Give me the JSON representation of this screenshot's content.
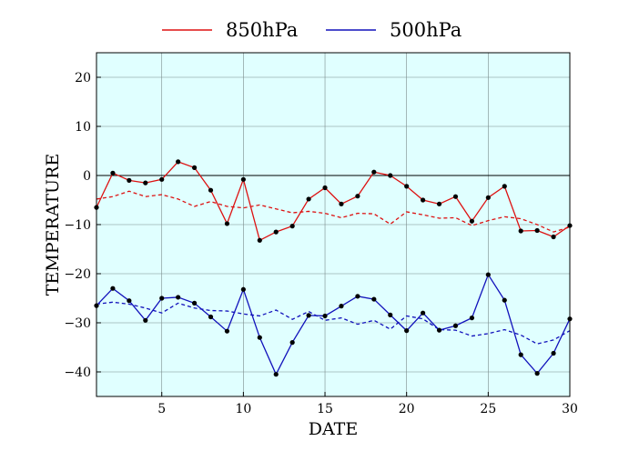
{
  "chart_data": {
    "type": "line",
    "title": "",
    "xlabel": "DATE",
    "ylabel": "TEMPERATURE",
    "xlim": [
      1,
      30
    ],
    "ylim": [
      -45,
      25
    ],
    "xticks": [
      5,
      10,
      15,
      20,
      25,
      30
    ],
    "yticks": [
      -40,
      -30,
      -20,
      -10,
      0,
      10,
      20
    ],
    "xtick_labels": [
      "5",
      "10",
      "15",
      "20",
      "25",
      "30"
    ],
    "ytick_labels": [
      "−40",
      "−30",
      "−20",
      "−10",
      "0",
      "10",
      "20"
    ],
    "grid": true,
    "background_color": "#e0ffff",
    "zero_line": true,
    "legend_position": "top-center",
    "x": [
      1,
      2,
      3,
      4,
      5,
      6,
      7,
      8,
      9,
      10,
      11,
      12,
      13,
      14,
      15,
      16,
      17,
      18,
      19,
      20,
      21,
      22,
      23,
      24,
      25,
      26,
      27,
      28,
      29,
      30
    ],
    "series": [
      {
        "name": "850hPa",
        "color": "#dd1111",
        "style": "solid",
        "markers": true,
        "values": [
          -6.5,
          0.5,
          -1.0,
          -1.5,
          -0.8,
          2.8,
          1.6,
          -3.0,
          -9.8,
          -0.8,
          -13.2,
          -11.5,
          -10.3,
          -4.8,
          -2.5,
          -5.8,
          -4.2,
          0.7,
          0.0,
          -2.2,
          -5.0,
          -5.8,
          -4.3,
          -9.3,
          -4.5,
          -2.2,
          -11.3,
          -11.2,
          -12.5,
          -10.2
        ]
      },
      {
        "name": "500hPa",
        "color": "#1111bb",
        "style": "solid",
        "markers": true,
        "values": [
          -26.5,
          -23.0,
          -25.5,
          -29.5,
          -25.0,
          -24.8,
          -26.0,
          -28.8,
          -31.7,
          -23.2,
          -33.0,
          -40.5,
          -34.0,
          -28.5,
          -28.6,
          -26.6,
          -24.6,
          -25.2,
          -28.4,
          -31.6,
          -28.0,
          -31.5,
          -30.6,
          -29.0,
          -20.2,
          -25.4,
          -36.5,
          -40.3,
          -36.2,
          -29.2
        ]
      },
      {
        "name": "",
        "color": "#dd1111",
        "style": "dashed",
        "markers": false,
        "values": [
          -4.8,
          -4.3,
          -3.2,
          -4.3,
          -3.9,
          -4.8,
          -6.3,
          -5.3,
          -6.3,
          -6.6,
          -6.0,
          -6.8,
          -7.6,
          -7.3,
          -7.7,
          -8.6,
          -7.7,
          -7.8,
          -9.9,
          -7.4,
          -8.0,
          -8.7,
          -8.6,
          -10.2,
          -9.2,
          -8.4,
          -8.8,
          -10.0,
          -11.5,
          -10.5
        ]
      },
      {
        "name": "",
        "color": "#1111bb",
        "style": "dashed",
        "markers": false,
        "values": [
          -26.2,
          -25.8,
          -26.2,
          -27.0,
          -28.0,
          -26.0,
          -27.0,
          -27.5,
          -27.6,
          -28.2,
          -28.6,
          -27.4,
          -29.3,
          -27.7,
          -29.5,
          -29.0,
          -30.3,
          -29.5,
          -31.3,
          -28.6,
          -29.2,
          -31.4,
          -31.5,
          -32.7,
          -32.2,
          -31.4,
          -32.5,
          -34.3,
          -33.5,
          -31.6
        ]
      }
    ]
  }
}
